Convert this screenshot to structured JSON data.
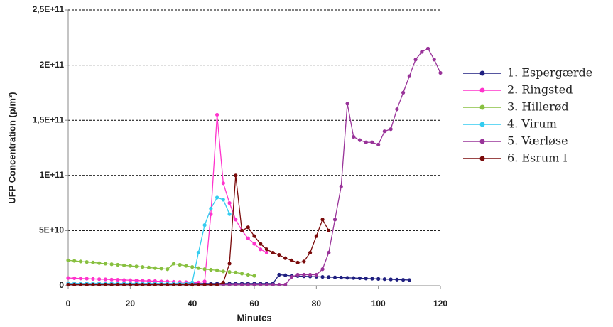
{
  "chart_data": {
    "type": "line",
    "y_label": "UFP Concentration (p/m³)",
    "x_label": "Minutes",
    "x": [
      0,
      2,
      4,
      6,
      8,
      10,
      12,
      14,
      16,
      18,
      20,
      22,
      24,
      26,
      28,
      30,
      32,
      34,
      36,
      38,
      40,
      42,
      44,
      46,
      48,
      50,
      52,
      54,
      56,
      58,
      60,
      62,
      64,
      66,
      68,
      70,
      72,
      74,
      76,
      78,
      80,
      82,
      84,
      86,
      88,
      90,
      92,
      94,
      96,
      98,
      100,
      102,
      104,
      106,
      108,
      110,
      112,
      114,
      116,
      118,
      120
    ],
    "xlim": [
      0,
      120
    ],
    "xticks": [
      0,
      20,
      40,
      60,
      80,
      100,
      120
    ],
    "ylim": [
      0,
      250000000000
    ],
    "yticks": [
      0,
      {
        "value": 50000000000,
        "label": "5E+10"
      },
      {
        "value": 100000000000,
        "label": "1E+11"
      },
      {
        "value": 150000000000,
        "label": "1,5E+11"
      },
      {
        "value": 200000000000,
        "label": "2E+11"
      },
      {
        "value": 250000000000,
        "label": "2,5E+11"
      }
    ],
    "grid": true,
    "series": [
      {
        "name": "1. Espergærde",
        "color": "#1f1f80",
        "values": [
          2000000000.0,
          2000000000.0,
          2000000000.0,
          2000000000.0,
          2000000000.0,
          2000000000.0,
          2000000000.0,
          2000000000.0,
          2000000000.0,
          2000000000.0,
          2000000000.0,
          2000000000.0,
          2000000000.0,
          2000000000.0,
          2000000000.0,
          2000000000.0,
          2000000000.0,
          2000000000.0,
          2000000000.0,
          2000000000.0,
          2000000000.0,
          2000000000.0,
          2000000000.0,
          2000000000.0,
          2000000000.0,
          2000000000.0,
          2000000000.0,
          2000000000.0,
          2000000000.0,
          2000000000.0,
          2000000000.0,
          2000000000.0,
          2000000000.0,
          2000000000.0,
          10000000000.0,
          9500000000.0,
          9000000000.0,
          8800000000.0,
          8600000000.0,
          8400000000.0,
          8200000000.0,
          8000000000.0,
          7800000000.0,
          7600000000.0,
          7400000000.0,
          7200000000.0,
          7000000000.0,
          6800000000.0,
          6600000000.0,
          6400000000.0,
          6200000000.0,
          6000000000.0,
          5800000000.0,
          5600000000.0,
          5400000000.0,
          5200000000.0,
          null,
          null,
          null,
          null,
          null
        ]
      },
      {
        "name": "2. Ringsted",
        "color": "#ff33cc",
        "values": [
          7000000000.0,
          6800000000.0,
          6600000000.0,
          6400000000.0,
          6200000000.0,
          6000000000.0,
          5800000000.0,
          5600000000.0,
          5400000000.0,
          5200000000.0,
          5000000000.0,
          4800000000.0,
          4600000000.0,
          4400000000.0,
          4200000000.0,
          4000000000.0,
          3800000000.0,
          3600000000.0,
          3400000000.0,
          3200000000.0,
          3000000000.0,
          3000000000.0,
          4000000000.0,
          65000000000.0,
          155000000000.0,
          93000000000.0,
          75000000000.0,
          60000000000.0,
          50000000000.0,
          43000000000.0,
          38000000000.0,
          33000000000.0,
          30000000000.0,
          null,
          null,
          null,
          null,
          null,
          null,
          null,
          null,
          null,
          null,
          null,
          null,
          null,
          null,
          null,
          null,
          null,
          null,
          null,
          null,
          null,
          null,
          null,
          null,
          null,
          null,
          null,
          null
        ]
      },
      {
        "name": "3. Hillerød",
        "color": "#88c040",
        "values": [
          23000000000.0,
          22500000000.0,
          22000000000.0,
          21500000000.0,
          21000000000.0,
          20500000000.0,
          20000000000.0,
          19500000000.0,
          19000000000.0,
          18500000000.0,
          18000000000.0,
          17500000000.0,
          17000000000.0,
          16500000000.0,
          16000000000.0,
          15500000000.0,
          15000000000.0,
          20000000000.0,
          19000000000.0,
          18000000000.0,
          17000000000.0,
          16000000000.0,
          15000000000.0,
          14500000000.0,
          14000000000.0,
          13000000000.0,
          12500000000.0,
          12000000000.0,
          11000000000.0,
          10000000000.0,
          9000000000.0,
          null,
          null,
          null,
          null,
          null,
          null,
          null,
          null,
          null,
          null,
          null,
          null,
          null,
          null,
          null,
          null,
          null,
          null,
          null,
          null,
          null,
          null,
          null,
          null,
          null,
          null,
          null,
          null,
          null,
          null
        ]
      },
      {
        "name": "4. Virum",
        "color": "#33ccf0",
        "values": [
          2000000000.0,
          2000000000.0,
          2000000000.0,
          2000000000.0,
          2000000000.0,
          2000000000.0,
          2000000000.0,
          2000000000.0,
          2000000000.0,
          2000000000.0,
          2000000000.0,
          2000000000.0,
          2000000000.0,
          2000000000.0,
          2000000000.0,
          2000000000.0,
          2000000000.0,
          2000000000.0,
          2000000000.0,
          2000000000.0,
          3000000000.0,
          30000000000.0,
          55000000000.0,
          70000000000.0,
          80000000000.0,
          78000000000.0,
          65000000000.0,
          null,
          null,
          null,
          null,
          null,
          null,
          null,
          null,
          null,
          null,
          null,
          null,
          null,
          null,
          null,
          null,
          null,
          null,
          null,
          null,
          null,
          null,
          null,
          null,
          null,
          null,
          null,
          null,
          null,
          null,
          null,
          null,
          null,
          null
        ]
      },
      {
        "name": "5. Værløse",
        "color": "#993399",
        "values": [
          1000000000.0,
          1000000000.0,
          1000000000.0,
          1000000000.0,
          1000000000.0,
          1000000000.0,
          1000000000.0,
          1000000000.0,
          1000000000.0,
          1000000000.0,
          1000000000.0,
          1000000000.0,
          1000000000.0,
          1000000000.0,
          1000000000.0,
          1000000000.0,
          1000000000.0,
          1000000000.0,
          1000000000.0,
          1000000000.0,
          1000000000.0,
          1000000000.0,
          1000000000.0,
          1000000000.0,
          1000000000.0,
          1000000000.0,
          1000000000.0,
          1000000000.0,
          1000000000.0,
          1000000000.0,
          1000000000.0,
          1000000000.0,
          1000000000.0,
          1000000000.0,
          1000000000.0,
          1000000000.0,
          8000000000.0,
          10000000000.0,
          10000000000.0,
          10000000000.0,
          10000000000.0,
          15000000000.0,
          30000000000.0,
          60000000000.0,
          90000000000.0,
          165000000000.0,
          135000000000.0,
          132000000000.0,
          130000000000.0,
          130000000000.0,
          128000000000.0,
          140000000000.0,
          142000000000.0,
          160000000000.0,
          175000000000.0,
          190000000000.0,
          205000000000.0,
          212000000000.0,
          215000000000.0,
          205000000000.0,
          193000000000.0
        ]
      },
      {
        "name": "6. Esrum I",
        "color": "#7a0a0a",
        "values": [
          1000000000.0,
          1000000000.0,
          1000000000.0,
          1000000000.0,
          1000000000.0,
          1000000000.0,
          1000000000.0,
          1000000000.0,
          1000000000.0,
          1000000000.0,
          1000000000.0,
          1000000000.0,
          1000000000.0,
          1000000000.0,
          1000000000.0,
          1000000000.0,
          1000000000.0,
          1000000000.0,
          1000000000.0,
          1000000000.0,
          1000000000.0,
          1000000000.0,
          1000000000.0,
          1000000000.0,
          1000000000.0,
          3000000000.0,
          20000000000.0,
          100000000000.0,
          50000000000.0,
          53000000000.0,
          45000000000.0,
          38000000000.0,
          33000000000.0,
          30000000000.0,
          28000000000.0,
          25000000000.0,
          23000000000.0,
          21000000000.0,
          22000000000.0,
          30000000000.0,
          45000000000.0,
          60000000000.0,
          50000000000.0,
          null,
          null,
          null,
          null,
          null,
          null,
          null,
          null,
          null,
          null,
          null,
          null,
          null,
          null,
          null,
          null,
          null,
          null
        ]
      }
    ]
  }
}
